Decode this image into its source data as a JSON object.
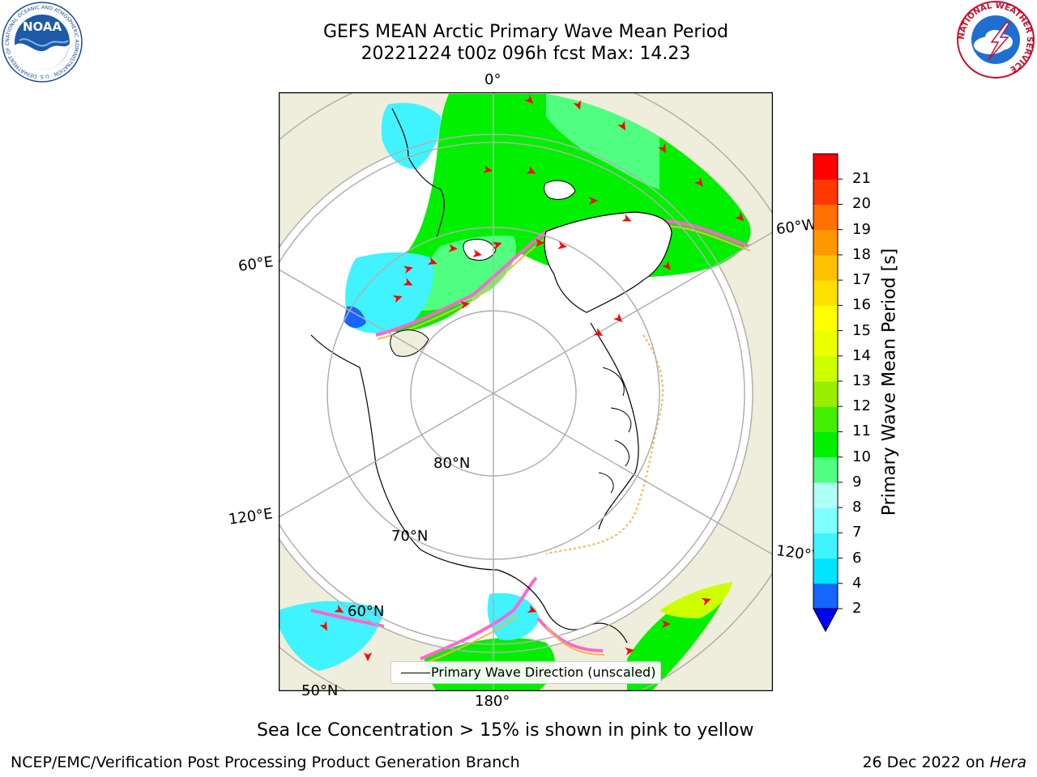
{
  "title": {
    "line1": "GEFS MEAN Arctic Primary Wave Mean Period",
    "line2": "20221224 t00z 096h fcst   Max: 14.23"
  },
  "logos": {
    "left": {
      "text": "NOAA",
      "ring_text": "NATIONAL OCEANIC AND ATMOSPHERIC ADMINISTRATION · U.S. DEPARTMENT OF COMMERCE"
    },
    "right": {
      "ring_text": "NATIONAL WEATHER SERVICE"
    }
  },
  "map": {
    "meridian_labels": {
      "top": "0°",
      "left_upper": "60°E",
      "left_lower": "120°E",
      "bottom": "180°",
      "right_upper": "60°W",
      "right_lower": "120°W"
    },
    "latitude_labels": {
      "lat80": "80°N",
      "lat70": "70°N",
      "lat60": "60°N",
      "lat50": "50°N"
    },
    "legend_label": "Primary Wave Direction (unscaled)",
    "colors": {
      "land": "#efeedc",
      "ice": "#ffffff",
      "grid": "#b0b0b0",
      "arrow": "#ff0000"
    }
  },
  "colorbar": {
    "label": "Primary Wave Mean Period [s]",
    "ticks": [
      "2",
      "4",
      "6",
      "7",
      "8",
      "9",
      "10",
      "11",
      "12",
      "13",
      "14",
      "15",
      "16",
      "17",
      "18",
      "19",
      "20",
      "21"
    ],
    "colors": [
      "#1565ff",
      "#00e5ff",
      "#40f3ff",
      "#80ffff",
      "#b0fff5",
      "#50ff80",
      "#00f000",
      "#44ee00",
      "#99ee00",
      "#ccff00",
      "#eeff00",
      "#ffff00",
      "#ffe000",
      "#ffc000",
      "#ff9800",
      "#ff7000",
      "#ff3800",
      "#ff0000"
    ],
    "under_color": "#0000ff"
  },
  "subtitle": "Sea Ice Concentration > 15% is shown in pink to yellow",
  "footer": {
    "left": "NCEP/EMC/Verification Post Processing Product Generation Branch",
    "right_prefix": "26 Dec 2022 on ",
    "right_host": "Hera"
  }
}
